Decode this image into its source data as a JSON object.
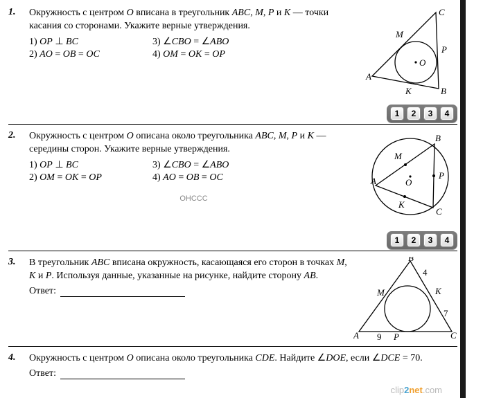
{
  "p1": {
    "num": "1.",
    "stmt": "Окружность с центром <i>O</i> вписана в треугольник <i>ABC</i>, <i>M</i>, <i>P</i> и <i>K</i> — точки касания со сторонами. Укажите верные утверждения.",
    "opts": [
      "1) <i>OP</i> ⊥ <i>BC</i>",
      "3) ∠<i>CBO</i> = ∠<i>ABO</i>",
      "2) <i>AO</i> = <i>OB</i> = <i>OC</i>",
      "4) <i>OM</i> = <i>OK</i> = <i>OP</i>"
    ],
    "fig": {
      "labels": {
        "A": "A",
        "B": "B",
        "C": "C",
        "M": "M",
        "P": "P",
        "K": "K",
        "O": "O"
      }
    }
  },
  "p2": {
    "num": "2.",
    "stmt": "Окружность с центром <i>O</i> описана около треугольника <i>ABC</i>, <i>M</i>, <i>P</i> и <i>K</i> — середины сторон. Укажите верные утверждения.",
    "opts": [
      "1) <i>OP</i> ⊥ <i>BC</i>",
      "3) ∠<i>CBO</i> = ∠<i>ABO</i>",
      "2) <i>OM</i> = <i>OK</i> = <i>OP</i>",
      "4) <i>AO</i> = <i>OB</i> = <i>OC</i>"
    ],
    "fig": {
      "labels": {
        "A": "A",
        "B": "B",
        "C": "C",
        "M": "M",
        "P": "P",
        "K": "K",
        "O": "O"
      }
    },
    "below": "ОНССС"
  },
  "p3": {
    "num": "3.",
    "stmt": "В треугольник <i>ABC</i> вписана окружность, касающаяся его сторон в точках <i>M</i>, <i>K</i> и <i>P</i>. Используя данные, указанные на рисунке, найдите сторону <i>AB</i>.",
    "answer_label": "Ответ:",
    "fig": {
      "labels": {
        "A": "A",
        "B": "B",
        "C": "C",
        "M": "M",
        "P": "P",
        "K": "K"
      },
      "vals": {
        "BK": "4",
        "KC": "7",
        "AP": "9"
      }
    }
  },
  "p4": {
    "num": "4.",
    "stmt": "Окружность с центром <i>O</i> описана около треугольника <i>CDE</i>. Найдите ∠<i>DOE</i>, если ∠<i>DCE</i> = 70.",
    "answer_label": "Ответ:"
  },
  "btns": [
    "1",
    "2",
    "3",
    "4"
  ],
  "watermark": {
    "a": "clip",
    "b": "2",
    "c": "net",
    "d": ".com"
  }
}
